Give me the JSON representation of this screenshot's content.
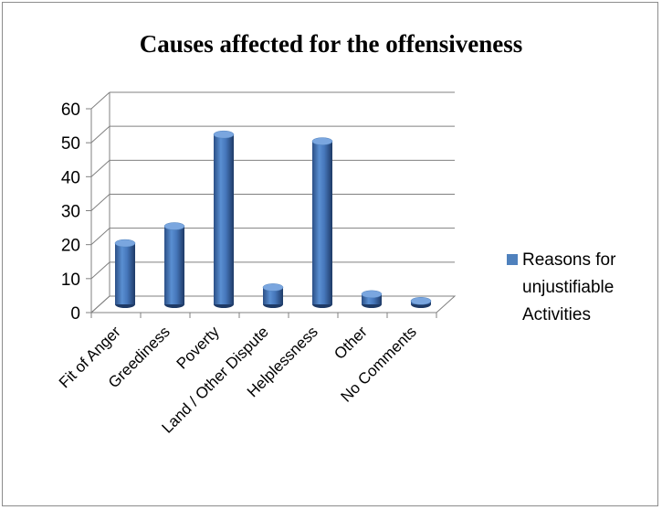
{
  "chart_data": {
    "type": "bar",
    "title": "Causes affected for the offensiveness",
    "categories": [
      "Fit of Anger",
      "Greediness",
      "Poverty",
      "Land / Other Dispute",
      "Helplessness",
      "Other",
      "No Comments"
    ],
    "series": [
      {
        "name": "Reasons for unjustifiable Activities",
        "values": [
          18,
          23,
          50,
          5,
          48,
          3,
          1
        ]
      }
    ],
    "yticks": [
      0,
      10,
      20,
      30,
      40,
      50,
      60
    ],
    "ylim": [
      0,
      60
    ],
    "xlabel": "",
    "ylabel": "",
    "grid": true,
    "legend_position": "right",
    "bar_color": "#4f81bd"
  }
}
